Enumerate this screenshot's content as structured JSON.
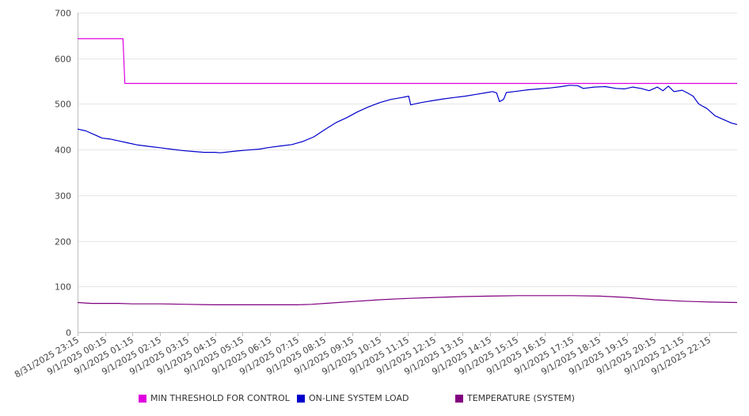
{
  "chart_data": {
    "type": "line",
    "ylim": [
      0,
      700
    ],
    "y_ticks": [
      "0",
      "100",
      "200",
      "300",
      "400",
      "500",
      "600",
      "700"
    ],
    "x_tick_labels": [
      "8/31/2025 23:15",
      "9/1/2025 00:15",
      "9/1/2025 01:15",
      "9/1/2025 02:15",
      "9/1/2025 03:15",
      "9/1/2025 04:15",
      "9/1/2025 05:15",
      "9/1/2025 06:15",
      "9/1/2025 07:15",
      "9/1/2025 08:15",
      "9/1/2025 09:15",
      "9/1/2025 10:15",
      "9/1/2025 11:15",
      "9/1/2025 12:15",
      "9/1/2025 13:15",
      "9/1/2025 14:15",
      "9/1/2025 15:15",
      "9/1/2025 16:15",
      "9/1/2025 17:15",
      "9/1/2025 18:15",
      "9/1/2025 19:15",
      "9/1/2025 20:15",
      "9/1/2025 21:15",
      "9/1/2025 22:15"
    ],
    "x_range_hours": [
      0,
      24
    ],
    "grid": true,
    "legend_position": "bottom",
    "series": [
      {
        "name": "MIN THRESHOLD FOR CONTROL",
        "color": "#e000e0",
        "points": [
          [
            0,
            643
          ],
          [
            1.65,
            643
          ],
          [
            1.72,
            545
          ],
          [
            24,
            545
          ]
        ]
      },
      {
        "name": "ON-LINE SYSTEM LOAD",
        "color": "#0000cc",
        "points": [
          [
            0,
            445
          ],
          [
            0.3,
            441
          ],
          [
            0.6,
            433
          ],
          [
            0.9,
            425
          ],
          [
            1.2,
            423
          ],
          [
            1.5,
            419
          ],
          [
            1.8,
            415
          ],
          [
            2.2,
            410
          ],
          [
            2.6,
            407
          ],
          [
            3.0,
            404
          ],
          [
            3.4,
            401
          ],
          [
            3.8,
            398
          ],
          [
            4.2,
            396
          ],
          [
            4.6,
            394
          ],
          [
            5.0,
            394
          ],
          [
            5.2,
            393
          ],
          [
            5.5,
            395
          ],
          [
            5.8,
            397
          ],
          [
            6.2,
            399
          ],
          [
            6.6,
            401
          ],
          [
            7.0,
            405
          ],
          [
            7.4,
            408
          ],
          [
            7.8,
            411
          ],
          [
            8.2,
            418
          ],
          [
            8.6,
            428
          ],
          [
            9.0,
            444
          ],
          [
            9.4,
            459
          ],
          [
            9.8,
            470
          ],
          [
            10.2,
            483
          ],
          [
            10.6,
            494
          ],
          [
            11.0,
            503
          ],
          [
            11.4,
            510
          ],
          [
            11.8,
            514
          ],
          [
            12.05,
            517
          ],
          [
            12.12,
            498
          ],
          [
            12.5,
            503
          ],
          [
            12.9,
            507
          ],
          [
            13.3,
            511
          ],
          [
            13.7,
            514
          ],
          [
            14.1,
            517
          ],
          [
            14.5,
            521
          ],
          [
            14.9,
            525
          ],
          [
            15.1,
            527
          ],
          [
            15.25,
            524
          ],
          [
            15.35,
            505
          ],
          [
            15.5,
            510
          ],
          [
            15.6,
            525
          ],
          [
            16.0,
            528
          ],
          [
            16.4,
            531
          ],
          [
            16.8,
            533
          ],
          [
            17.2,
            535
          ],
          [
            17.6,
            538
          ],
          [
            17.9,
            541
          ],
          [
            18.2,
            540
          ],
          [
            18.4,
            534
          ],
          [
            18.8,
            537
          ],
          [
            19.2,
            538
          ],
          [
            19.6,
            534
          ],
          [
            19.9,
            533
          ],
          [
            20.2,
            537
          ],
          [
            20.5,
            534
          ],
          [
            20.8,
            529
          ],
          [
            21.1,
            537
          ],
          [
            21.3,
            529
          ],
          [
            21.5,
            539
          ],
          [
            21.7,
            527
          ],
          [
            22.0,
            530
          ],
          [
            22.2,
            524
          ],
          [
            22.4,
            517
          ],
          [
            22.6,
            500
          ],
          [
            22.9,
            490
          ],
          [
            23.2,
            474
          ],
          [
            23.5,
            466
          ],
          [
            23.8,
            458
          ],
          [
            24,
            455
          ]
        ]
      },
      {
        "name": "TEMPERATURE (SYSTEM)",
        "color": "#800080",
        "points": [
          [
            0,
            65
          ],
          [
            0.5,
            63
          ],
          [
            1.5,
            63
          ],
          [
            2.0,
            62
          ],
          [
            3.0,
            62
          ],
          [
            4.0,
            61
          ],
          [
            5.0,
            60
          ],
          [
            6.0,
            60
          ],
          [
            7.0,
            60
          ],
          [
            8.0,
            60
          ],
          [
            8.5,
            61
          ],
          [
            9.0,
            63
          ],
          [
            10.0,
            67
          ],
          [
            11.0,
            71
          ],
          [
            12.0,
            74
          ],
          [
            13.0,
            76
          ],
          [
            14.0,
            78
          ],
          [
            15.0,
            79
          ],
          [
            16.0,
            80
          ],
          [
            17.0,
            80
          ],
          [
            18.0,
            80
          ],
          [
            19.0,
            79
          ],
          [
            20.0,
            76
          ],
          [
            21.0,
            71
          ],
          [
            22.0,
            68
          ],
          [
            23.0,
            66
          ],
          [
            24,
            65
          ]
        ]
      }
    ]
  }
}
